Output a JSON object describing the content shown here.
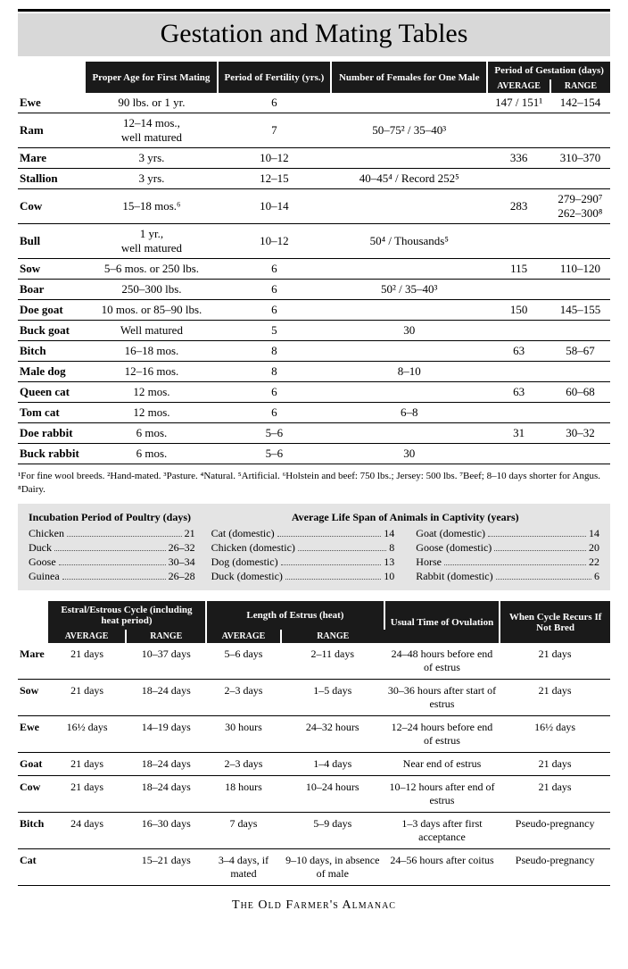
{
  "page_title": "Gestation and Mating Tables",
  "colors": {
    "header_bg": "#1a1a1a",
    "header_fg": "#ffffff",
    "band_bg": "#d8d8d8",
    "graybox_bg": "#e4e4e4"
  },
  "table1": {
    "headers": {
      "col_age": "Proper Age for First Mating",
      "col_fert": "Period of Fertility (yrs.)",
      "col_females": "Number of Females for One Male",
      "col_gest": "Period of Gestation (days)",
      "sub_avg": "AVERAGE",
      "sub_range": "RANGE"
    },
    "rows": [
      {
        "animal": "Ewe",
        "age": "90 lbs. or 1 yr.",
        "fert": "6",
        "females": "",
        "avg": "147 / 151¹",
        "range": "142–154"
      },
      {
        "animal": "Ram",
        "age": "12–14 mos., well matured",
        "fert": "7",
        "females": "50–75² / 35–40³",
        "avg": "",
        "range": ""
      },
      {
        "animal": "Mare",
        "age": "3 yrs.",
        "fert": "10–12",
        "females": "",
        "avg": "336",
        "range": "310–370"
      },
      {
        "animal": "Stallion",
        "age": "3 yrs.",
        "fert": "12–15",
        "females": "40–45⁴ / Record 252⁵",
        "avg": "",
        "range": ""
      },
      {
        "animal": "Cow",
        "age": "15–18 mos.⁶",
        "fert": "10–14",
        "females": "",
        "avg": "283",
        "range": "279–290⁷ 262–300⁸"
      },
      {
        "animal": "Bull",
        "age": "1 yr., well matured",
        "fert": "10–12",
        "females": "50⁴ / Thousands⁵",
        "avg": "",
        "range": ""
      },
      {
        "animal": "Sow",
        "age": "5–6 mos. or 250 lbs.",
        "fert": "6",
        "females": "",
        "avg": "115",
        "range": "110–120"
      },
      {
        "animal": "Boar",
        "age": "250–300 lbs.",
        "fert": "6",
        "females": "50² / 35–40³",
        "avg": "",
        "range": ""
      },
      {
        "animal": "Doe goat",
        "age": "10 mos. or 85–90 lbs.",
        "fert": "6",
        "females": "",
        "avg": "150",
        "range": "145–155"
      },
      {
        "animal": "Buck goat",
        "age": "Well matured",
        "fert": "5",
        "females": "30",
        "avg": "",
        "range": ""
      },
      {
        "animal": "Bitch",
        "age": "16–18 mos.",
        "fert": "8",
        "females": "",
        "avg": "63",
        "range": "58–67"
      },
      {
        "animal": "Male dog",
        "age": "12–16 mos.",
        "fert": "8",
        "females": "8–10",
        "avg": "",
        "range": ""
      },
      {
        "animal": "Queen cat",
        "age": "12 mos.",
        "fert": "6",
        "females": "",
        "avg": "63",
        "range": "60–68"
      },
      {
        "animal": "Tom cat",
        "age": "12 mos.",
        "fert": "6",
        "females": "6–8",
        "avg": "",
        "range": ""
      },
      {
        "animal": "Doe rabbit",
        "age": "6 mos.",
        "fert": "5–6",
        "females": "",
        "avg": "31",
        "range": "30–32"
      },
      {
        "animal": "Buck rabbit",
        "age": "6 mos.",
        "fert": "5–6",
        "females": "30",
        "avg": "",
        "range": ""
      }
    ]
  },
  "footnotes": "¹For fine wool breeds. ²Hand-mated. ³Pasture. ⁴Natural. ⁵Artificial. ⁶Holstein and beef: 750 lbs.; Jersey: 500 lbs. ⁷Beef; 8–10 days shorter for Angus. ⁸Dairy.",
  "incubation": {
    "title": "Incubation Period of Poultry (days)",
    "items": [
      {
        "name": "Chicken",
        "val": "21"
      },
      {
        "name": "Duck",
        "val": "26–32"
      },
      {
        "name": "Goose",
        "val": "30–34"
      },
      {
        "name": "Guinea",
        "val": "26–28"
      }
    ]
  },
  "lifespan": {
    "title": "Average Life Span of Animals in Captivity (years)",
    "col1": [
      {
        "name": "Cat (domestic)",
        "val": "14"
      },
      {
        "name": "Chicken (domestic)",
        "val": "8"
      },
      {
        "name": "Dog (domestic)",
        "val": "13"
      },
      {
        "name": "Duck (domestic)",
        "val": "10"
      }
    ],
    "col2": [
      {
        "name": "Goat (domestic)",
        "val": "14"
      },
      {
        "name": "Goose (domestic)",
        "val": "20"
      },
      {
        "name": "Horse",
        "val": "22"
      },
      {
        "name": "Rabbit (domestic)",
        "val": "6"
      }
    ]
  },
  "table2": {
    "headers": {
      "col_cycle": "Estral/Estrous Cycle (including heat period)",
      "col_heat": "Length of Estrus (heat)",
      "col_ovul": "Usual Time of Ovulation",
      "col_recur": "When Cycle Recurs If Not Bred",
      "sub_avg": "AVERAGE",
      "sub_range": "RANGE"
    },
    "rows": [
      {
        "animal": "Mare",
        "cavg": "21 days",
        "crange": "10–37 days",
        "havg": "5–6 days",
        "hrange": "2–11 days",
        "ovul": "24–48 hours before end of estrus",
        "recur": "21 days"
      },
      {
        "animal": "Sow",
        "cavg": "21 days",
        "crange": "18–24 days",
        "havg": "2–3 days",
        "hrange": "1–5 days",
        "ovul": "30–36 hours after start of estrus",
        "recur": "21 days"
      },
      {
        "animal": "Ewe",
        "cavg": "16½ days",
        "crange": "14–19 days",
        "havg": "30 hours",
        "hrange": "24–32 hours",
        "ovul": "12–24 hours before end of estrus",
        "recur": "16½ days"
      },
      {
        "animal": "Goat",
        "cavg": "21 days",
        "crange": "18–24 days",
        "havg": "2–3 days",
        "hrange": "1–4 days",
        "ovul": "Near end of estrus",
        "recur": "21 days"
      },
      {
        "animal": "Cow",
        "cavg": "21 days",
        "crange": "18–24 days",
        "havg": "18 hours",
        "hrange": "10–24 hours",
        "ovul": "10–12 hours after end of estrus",
        "recur": "21 days"
      },
      {
        "animal": "Bitch",
        "cavg": "24 days",
        "crange": "16–30 days",
        "havg": "7 days",
        "hrange": "5–9 days",
        "ovul": "1–3 days after first acceptance",
        "recur": "Pseudo-pregnancy"
      },
      {
        "animal": "Cat",
        "cavg": "",
        "crange": "15–21 days",
        "havg": "3–4 days, if mated",
        "hrange": "9–10 days, in absence of male",
        "ovul": "24–56 hours after coitus",
        "recur": "Pseudo-pregnancy"
      }
    ]
  },
  "source": "The Old Farmer's Almanac"
}
